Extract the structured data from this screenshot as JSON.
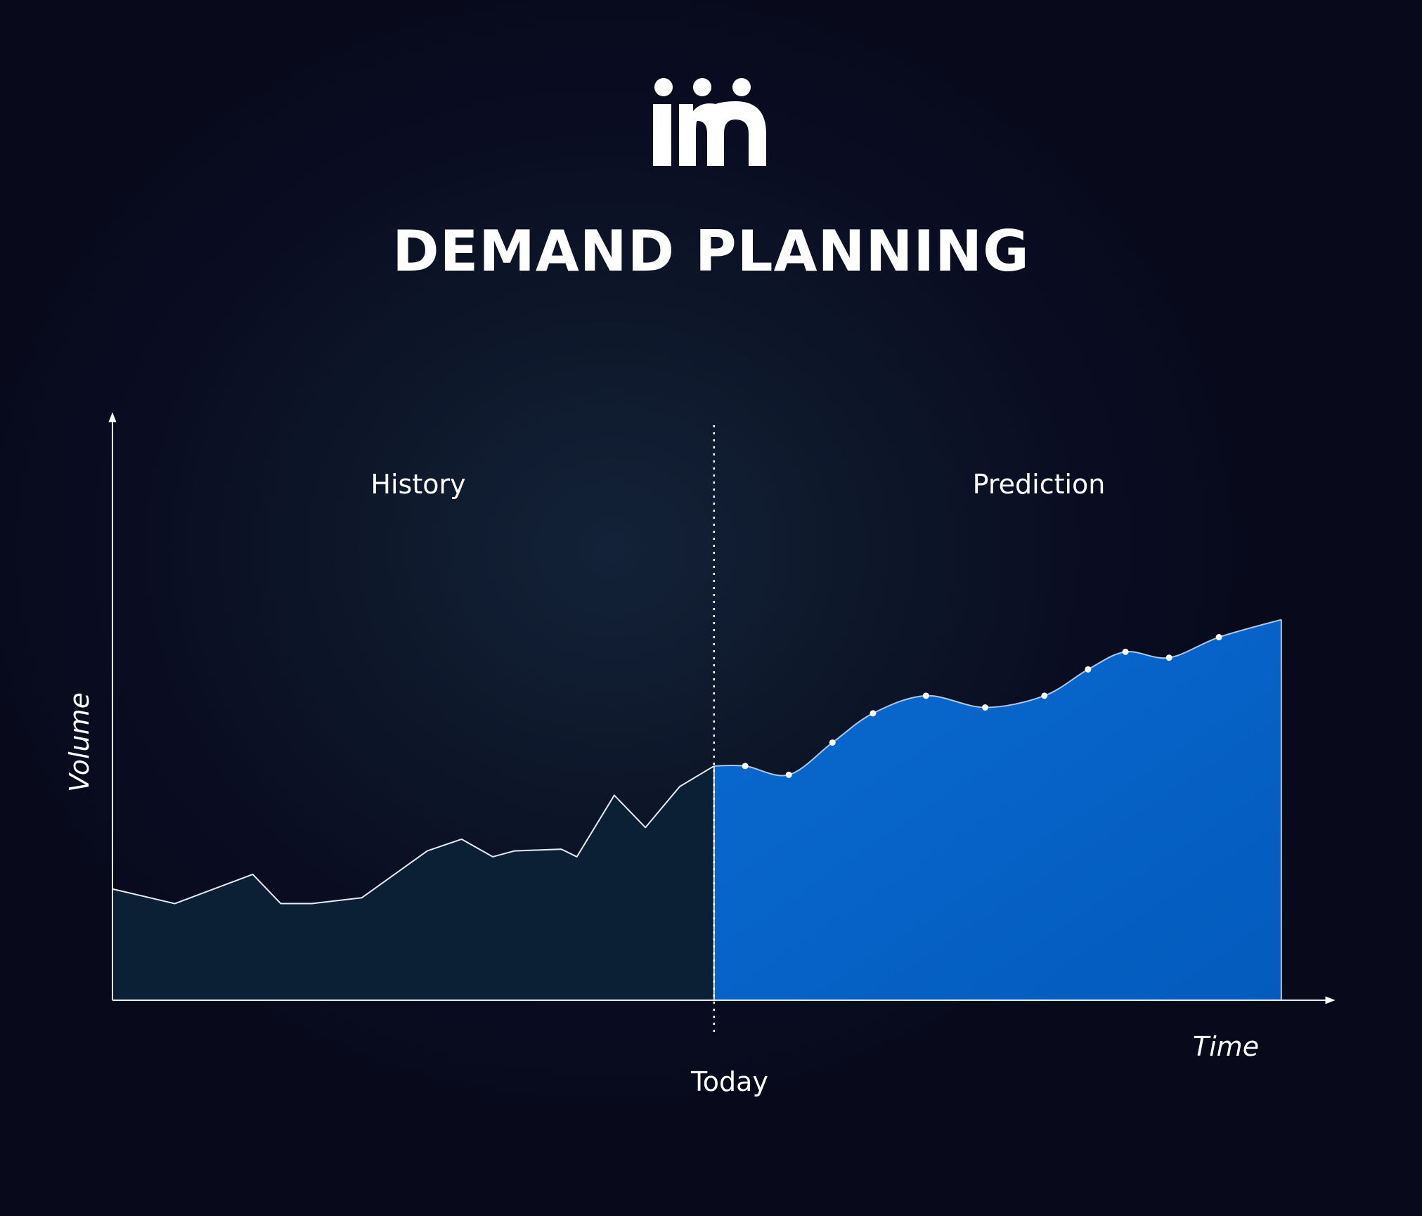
{
  "header": {
    "title": "DEMAND PLANNING"
  },
  "logo": {
    "icon": "iim-logo-icon",
    "color": "#ffffff"
  },
  "chart_data": {
    "type": "area",
    "title": "DEMAND PLANNING",
    "xlabel": "Time",
    "ylabel": "Volume",
    "xlim": [
      0,
      38
    ],
    "ylim": [
      0,
      100
    ],
    "grid": false,
    "divider": {
      "x": 19.3,
      "label": "Today"
    },
    "regions": [
      {
        "name": "History",
        "label": "History"
      },
      {
        "name": "Prediction",
        "label": "Prediction"
      }
    ],
    "colors": {
      "history_fill": "#0b1f35",
      "prediction_fill": "#0562c4",
      "line": "#e6ecf5",
      "marker": "#ffffff"
    },
    "series": [
      {
        "kind": "history",
        "x": [
          0,
          2,
          4.5,
          5.4,
          6.4,
          8,
          10.1,
          11.2,
          12.2,
          12.9,
          14.4,
          14.9,
          16.1,
          17.1,
          18.2,
          19.3
        ],
        "y": [
          19,
          16.5,
          21.5,
          16.5,
          16.5,
          17.5,
          25.5,
          27.5,
          24.5,
          25.5,
          25.8,
          24.5,
          35,
          29.5,
          36.5,
          40
        ]
      },
      {
        "kind": "prediction",
        "x": [
          19.3,
          20.3,
          21.7,
          23.1,
          24.4,
          26.1,
          28,
          29.9,
          31.3,
          32.5,
          33.9,
          35.5,
          37.5
        ],
        "y": [
          40,
          40,
          38.5,
          44,
          49,
          52,
          50,
          52,
          56.5,
          59.5,
          58.5,
          62,
          65
        ],
        "markers": true
      }
    ]
  }
}
